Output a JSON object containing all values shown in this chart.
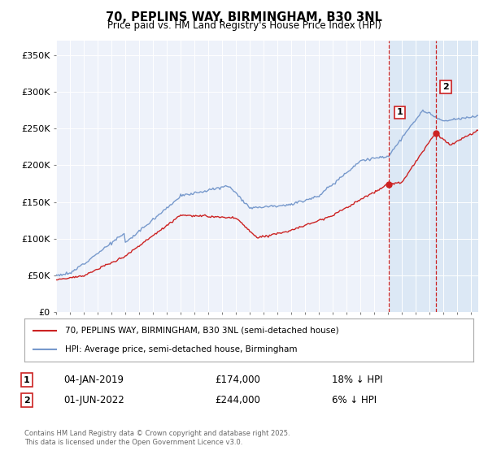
{
  "title": "70, PEPLINS WAY, BIRMINGHAM, B30 3NL",
  "subtitle": "Price paid vs. HM Land Registry's House Price Index (HPI)",
  "ylabel_ticks": [
    "£0",
    "£50K",
    "£100K",
    "£150K",
    "£200K",
    "£250K",
    "£300K",
    "£350K"
  ],
  "ytick_values": [
    0,
    50000,
    100000,
    150000,
    200000,
    250000,
    300000,
    350000
  ],
  "ylim": [
    0,
    370000
  ],
  "xlim_start": 1995,
  "xlim_end": 2025.5,
  "xtick_years": [
    1995,
    1996,
    1997,
    1998,
    1999,
    2000,
    2001,
    2002,
    2003,
    2004,
    2005,
    2006,
    2007,
    2008,
    2009,
    2010,
    2011,
    2012,
    2013,
    2014,
    2015,
    2016,
    2017,
    2018,
    2019,
    2020,
    2021,
    2022,
    2023,
    2024,
    2025
  ],
  "red_line_color": "#cc2222",
  "blue_line_color": "#7799cc",
  "marker_color": "#cc2222",
  "vline_color": "#cc2222",
  "shade_color": "#dce8f5",
  "marker1_x": 2019.01,
  "marker1_y": 174000,
  "marker2_x": 2022.42,
  "marker2_y": 244000,
  "legend_red_label": "70, PEPLINS WAY, BIRMINGHAM, B30 3NL (semi-detached house)",
  "legend_blue_label": "HPI: Average price, semi-detached house, Birmingham",
  "annotation1_label": "1",
  "annotation2_label": "2",
  "annotation1_date": "04-JAN-2019",
  "annotation1_price": "£174,000",
  "annotation1_hpi": "18% ↓ HPI",
  "annotation2_date": "01-JUN-2022",
  "annotation2_price": "£244,000",
  "annotation2_hpi": "6% ↓ HPI",
  "footer": "Contains HM Land Registry data © Crown copyright and database right 2025.\nThis data is licensed under the Open Government Licence v3.0.",
  "background_color": "#ffffff",
  "plot_bg_color": "#eef2fa"
}
